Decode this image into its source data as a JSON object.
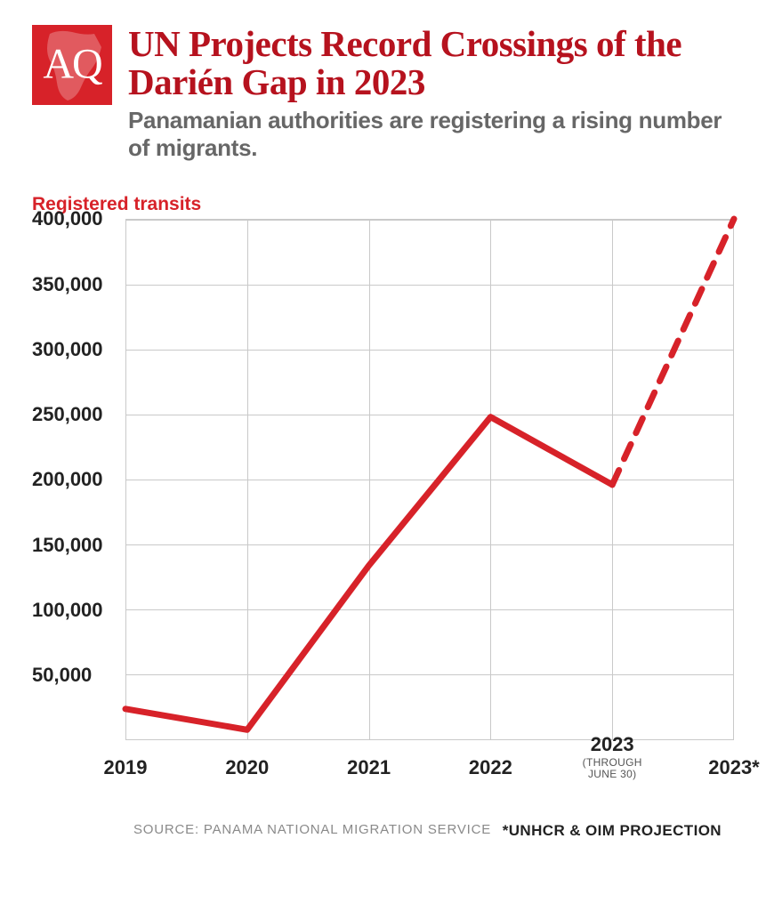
{
  "header": {
    "logo_text": "AQ",
    "title": "UN Projects Record Crossings of the Darién Gap in 2023",
    "subtitle": "Panamanian authorities are registering a rising number of migrants."
  },
  "chart": {
    "type": "line",
    "y_axis_label": "Registered transits",
    "ylim": [
      0,
      400000
    ],
    "ytick_step": 50000,
    "yticks": [
      "50,000",
      "100,000",
      "150,000",
      "200,000",
      "250,000",
      "300,000",
      "350,000",
      "400,000"
    ],
    "xticks": [
      {
        "label": "2019",
        "sub": ""
      },
      {
        "label": "2020",
        "sub": ""
      },
      {
        "label": "2021",
        "sub": ""
      },
      {
        "label": "2022",
        "sub": ""
      },
      {
        "label": "2023",
        "sub": "(THROUGH\nJUNE 30)"
      },
      {
        "label": "2023*",
        "sub": ""
      }
    ],
    "series_solid": {
      "x": [
        0,
        1,
        2,
        3,
        4
      ],
      "y": [
        24000,
        8000,
        134000,
        248000,
        196000
      ],
      "color": "#d72229",
      "line_width": 7
    },
    "series_dashed": {
      "x": [
        4,
        5
      ],
      "y": [
        196000,
        400000
      ],
      "color": "#d72229",
      "line_width": 7,
      "dash": "18 14"
    },
    "grid_color": "#c9c9c9",
    "background_color": "#ffffff",
    "axis_font_color": "#222222",
    "ylabel_color": "#d72229",
    "ylabel_fontsize": 21,
    "tick_fontsize": 22
  },
  "footer": {
    "source": "SOURCE: PANAMA NATIONAL MIGRATION SERVICE",
    "projection_note": "*UNHCR & OIM PROJECTION"
  },
  "colors": {
    "brand_red": "#d72229",
    "title_red": "#b6121e",
    "body_text": "#222222",
    "muted_text": "#676767",
    "footer_gray": "#8a8a8a",
    "grid": "#c9c9c9",
    "background": "#ffffff"
  }
}
